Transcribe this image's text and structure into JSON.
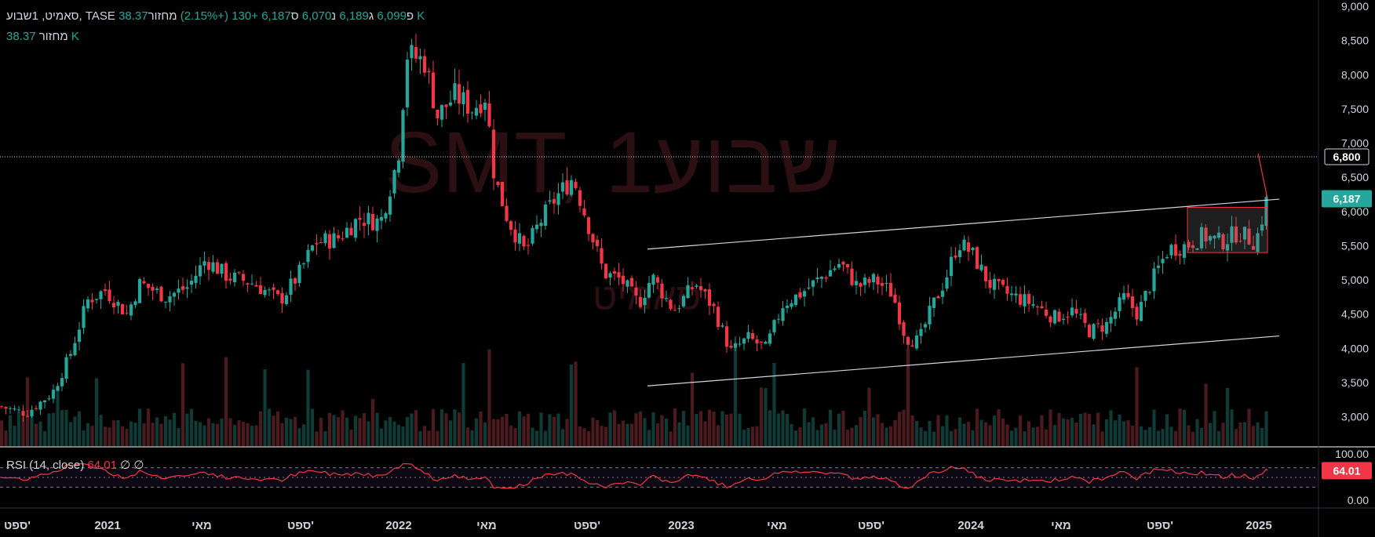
{
  "legend": {
    "symbol": "סאמיט, 1שבוע, TASE",
    "open_label": "פ",
    "open": "6,099",
    "high_label": "ג",
    "high": "6,189",
    "low_label": "נ",
    "low": "6,070",
    "close_label": "ס",
    "close": "6,187",
    "change": "+130 (+2.15%)",
    "volume_label": "מחזור",
    "volume": "38.37 K"
  },
  "volume_legend": {
    "label": "מחזור",
    "value": "38.37 K"
  },
  "watermark": {
    "main": "SMT, 1שבוע",
    "sub": "סאמיט"
  },
  "rsi": {
    "label": "RSI (14, close)",
    "value": "64.01",
    "na1": "∅",
    "na2": "∅",
    "axis_top": "100.00",
    "axis_bottom": "0.00",
    "tag": "64.01"
  },
  "price_axis": {
    "ticks": [
      "9,000",
      "8,500",
      "8,000",
      "7,500",
      "7,000",
      "6,500",
      "6,000",
      "5,500",
      "5,000",
      "4,500",
      "4,000",
      "3,500",
      "3,000"
    ],
    "hline_tag": "6,800",
    "last_tag": "6,187"
  },
  "x_axis": {
    "labels": [
      {
        "text": "ספט'",
        "bold": false
      },
      {
        "text": "2021",
        "bold": true
      },
      {
        "text": "מאי",
        "bold": false
      },
      {
        "text": "ספט'",
        "bold": false
      },
      {
        "text": "2022",
        "bold": true
      },
      {
        "text": "מאי",
        "bold": false
      },
      {
        "text": "ספט'",
        "bold": false
      },
      {
        "text": "2023",
        "bold": true
      },
      {
        "text": "מאי",
        "bold": false
      },
      {
        "text": "ספט'",
        "bold": false
      },
      {
        "text": "2024",
        "bold": true
      },
      {
        "text": "מאי",
        "bold": false
      },
      {
        "text": "ספט'",
        "bold": false
      },
      {
        "text": "2025",
        "bold": true
      }
    ]
  },
  "colors": {
    "up": "#26a69a",
    "down": "#f23645",
    "background": "#000000",
    "rsi": "#f23645"
  },
  "chart_data": {
    "type": "candlestick",
    "symbol": "SMT",
    "interval": "1שבוע",
    "ylim": [
      2800,
      9000
    ],
    "horizontal_line": 6800,
    "anchors": [
      {
        "x": 0,
        "y": 3150
      },
      {
        "x": 30,
        "y": 3050
      },
      {
        "x": 60,
        "y": 3350
      },
      {
        "x": 80,
        "y": 3900
      },
      {
        "x": 100,
        "y": 4700
      },
      {
        "x": 120,
        "y": 4850
      },
      {
        "x": 145,
        "y": 4500
      },
      {
        "x": 160,
        "y": 4950
      },
      {
        "x": 190,
        "y": 4750
      },
      {
        "x": 215,
        "y": 4900
      },
      {
        "x": 235,
        "y": 5300
      },
      {
        "x": 260,
        "y": 5050
      },
      {
        "x": 290,
        "y": 4950
      },
      {
        "x": 320,
        "y": 4700
      },
      {
        "x": 340,
        "y": 5050
      },
      {
        "x": 360,
        "y": 5550
      },
      {
        "x": 385,
        "y": 5600
      },
      {
        "x": 410,
        "y": 5900
      },
      {
        "x": 435,
        "y": 5850
      },
      {
        "x": 455,
        "y": 6800
      },
      {
        "x": 465,
        "y": 8300
      },
      {
        "x": 485,
        "y": 8200
      },
      {
        "x": 500,
        "y": 7400
      },
      {
        "x": 520,
        "y": 7700
      },
      {
        "x": 540,
        "y": 7500
      },
      {
        "x": 555,
        "y": 7700
      },
      {
        "x": 565,
        "y": 6500
      },
      {
        "x": 580,
        "y": 5900
      },
      {
        "x": 600,
        "y": 5400
      },
      {
        "x": 615,
        "y": 5800
      },
      {
        "x": 635,
        "y": 6200
      },
      {
        "x": 655,
        "y": 6500
      },
      {
        "x": 675,
        "y": 5700
      },
      {
        "x": 690,
        "y": 5100
      },
      {
        "x": 710,
        "y": 5000
      },
      {
        "x": 730,
        "y": 4650
      },
      {
        "x": 745,
        "y": 5050
      },
      {
        "x": 770,
        "y": 4550
      },
      {
        "x": 795,
        "y": 4950
      },
      {
        "x": 815,
        "y": 4600
      },
      {
        "x": 835,
        "y": 3950
      },
      {
        "x": 855,
        "y": 4150
      },
      {
        "x": 875,
        "y": 4000
      },
      {
        "x": 895,
        "y": 4650
      },
      {
        "x": 915,
        "y": 4800
      },
      {
        "x": 940,
        "y": 5050
      },
      {
        "x": 960,
        "y": 5250
      },
      {
        "x": 980,
        "y": 4900
      },
      {
        "x": 1000,
        "y": 5000
      },
      {
        "x": 1020,
        "y": 4800
      },
      {
        "x": 1035,
        "y": 4150
      },
      {
        "x": 1050,
        "y": 4100
      },
      {
        "x": 1065,
        "y": 4600
      },
      {
        "x": 1080,
        "y": 5000
      },
      {
        "x": 1095,
        "y": 5550
      },
      {
        "x": 1110,
        "y": 5400
      },
      {
        "x": 1130,
        "y": 4950
      },
      {
        "x": 1150,
        "y": 4800
      },
      {
        "x": 1180,
        "y": 4650
      },
      {
        "x": 1205,
        "y": 4450
      },
      {
        "x": 1225,
        "y": 4550
      },
      {
        "x": 1245,
        "y": 4250
      },
      {
        "x": 1265,
        "y": 4350
      },
      {
        "x": 1285,
        "y": 4750
      },
      {
        "x": 1300,
        "y": 4500
      },
      {
        "x": 1315,
        "y": 4950
      },
      {
        "x": 1335,
        "y": 5450
      },
      {
        "x": 1355,
        "y": 5500
      },
      {
        "x": 1375,
        "y": 5650
      },
      {
        "x": 1395,
        "y": 5550
      },
      {
        "x": 1415,
        "y": 5700
      },
      {
        "x": 1435,
        "y": 5550
      },
      {
        "x": 1448,
        "y": 6187
      }
    ],
    "channel": {
      "upper": [
        {
          "x": 825,
          "y": 5450
        },
        {
          "x": 1630,
          "y": 6180
        }
      ],
      "lower": [
        {
          "x": 825,
          "y": 3450
        },
        {
          "x": 1630,
          "y": 4180
        }
      ]
    },
    "rectangle": {
      "x0": 1513,
      "x1": 1615,
      "y0": 5400,
      "y1": 6060
    },
    "rsi_last": 64.01
  }
}
